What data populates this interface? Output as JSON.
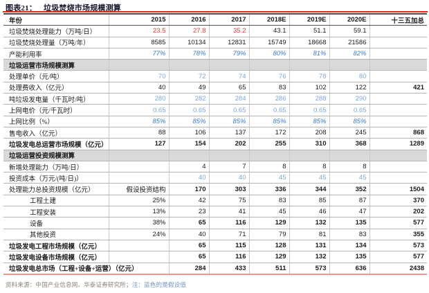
{
  "title": {
    "prefix": "图表21：",
    "caption": "垃圾焚烧市场规模测算"
  },
  "footer": {
    "source": "资料来源：中国产业信息网、华泰证券研究所；",
    "note": "注：蓝色的是假设值"
  },
  "colors": {
    "title_rule": "#e8281e",
    "bottom_rule": "#f0978b",
    "section_bg": "#d9d9d9",
    "actual_red": "#e23a32",
    "assumption_blue": "#7ca6d8",
    "assumption_blue_italic": "#3a7bc8"
  },
  "table": {
    "columns": [
      "年份",
      "2015",
      "2016",
      "2017",
      "2018E",
      "2019E",
      "2020E",
      "十三五加总"
    ],
    "rows": [
      {
        "label": "垃圾焚烧处理能力（万吨/日）",
        "vals": [
          "23.5",
          "27.8",
          "35.2",
          "43.1",
          "51.1",
          "59.1",
          ""
        ],
        "vcls": [
          "red",
          "red",
          "red",
          "",
          "",
          "",
          ""
        ]
      },
      {
        "label": "垃圾焚烧处理量（万吨/年）",
        "vals": [
          "8585",
          "10134",
          "12831",
          "15749",
          "18668",
          "21586",
          ""
        ]
      },
      {
        "label": "产能利用率",
        "vals": [
          "77%",
          "78%",
          "79%",
          "80%",
          "81%",
          "82%",
          ""
        ],
        "rowcls": "bluei"
      },
      {
        "label": "垃圾运营市场规模测算",
        "section": true,
        "vals": [
          "",
          "",
          "",
          "",
          "",
          "",
          ""
        ]
      },
      {
        "label": "处理单价（元/吨）",
        "vals": [
          "70",
          "72",
          "74",
          "76",
          "78",
          "80",
          ""
        ],
        "rowcls": "blue"
      },
      {
        "label": "处理费收入（亿元）",
        "vals": [
          "40",
          "49",
          "65",
          "83",
          "102",
          "122",
          "421"
        ],
        "vcls": [
          "",
          "",
          "",
          "",
          "",
          "",
          "b"
        ]
      },
      {
        "label": "吨垃圾发电量（千瓦时/吨）",
        "vals": [
          "280",
          "282",
          "284",
          "286",
          "288",
          "290",
          ""
        ],
        "rowcls": "blue"
      },
      {
        "label": "上网电价（元/千瓦时）",
        "vals": [
          "0.65",
          "0.65",
          "0.65",
          "0.65",
          "0.65",
          "0.65",
          ""
        ],
        "rowcls": "blue"
      },
      {
        "label": "上网比例（%）",
        "vals": [
          "85%",
          "85%",
          "85%",
          "85%",
          "85%",
          "85%",
          ""
        ],
        "rowcls": "bluei"
      },
      {
        "label": "售电收入（亿元）",
        "vals": [
          "88",
          "106",
          "137",
          "172",
          "208",
          "245",
          "868"
        ],
        "vcls": [
          "",
          "",
          "",
          "",
          "",
          "",
          "b"
        ]
      },
      {
        "label": "垃圾发电总运营市场规模（亿元）",
        "lbold": true,
        "bold": true,
        "vals": [
          "127",
          "154",
          "202",
          "255",
          "310",
          "368",
          "1289"
        ]
      },
      {
        "label": "垃圾运营投资规模测算",
        "section": true,
        "vals": [
          "",
          "",
          "",
          "",
          "",
          "",
          ""
        ]
      },
      {
        "label": "新增处理能力（万吨/日）",
        "vals": [
          "",
          "4",
          "7",
          "8",
          "8",
          "8",
          ""
        ]
      },
      {
        "label": "投资成本（万元/(吨/日)）",
        "vals": [
          "",
          "40",
          "40",
          "45",
          "45",
          "45",
          ""
        ],
        "rowcls": "blue"
      },
      {
        "label": "处理能力总投资规模（亿元）",
        "bold": true,
        "vals": [
          "假设投资结构",
          "170",
          "303",
          "336",
          "344",
          "352",
          "1504"
        ],
        "vcls": [
          "kai",
          "",
          "",
          "",
          "",
          "",
          ""
        ]
      },
      {
        "label": "工程土建",
        "indent": true,
        "vals": [
          "25%",
          "42",
          "75",
          "83",
          "85",
          "87",
          "370"
        ],
        "vcls": [
          "",
          "",
          "",
          "",
          "",
          "",
          "b"
        ]
      },
      {
        "label": "工程安装",
        "indent": true,
        "vals": [
          "13%",
          "23",
          "41",
          "45",
          "46",
          "47",
          "202"
        ],
        "vcls": [
          "",
          "",
          "",
          "",
          "",
          "",
          "b"
        ]
      },
      {
        "label": "设备",
        "indent": true,
        "bold": true,
        "vals": [
          "38%",
          "65",
          "116",
          "129",
          "132",
          "135",
          "577"
        ],
        "vcls": [
          "nb",
          "",
          "",
          "",
          "",
          "",
          ""
        ]
      },
      {
        "label": "其他投资",
        "indent": true,
        "vals": [
          "24%",
          "40",
          "71",
          "79",
          "81",
          "83",
          "355"
        ],
        "vcls": [
          "",
          "",
          "",
          "",
          "",
          "",
          "b"
        ]
      },
      {
        "label": "垃圾发电工程市场规模（亿元）",
        "lbold": true,
        "bold": true,
        "vals": [
          "",
          "65",
          "115",
          "128",
          "131",
          "134",
          "573"
        ]
      },
      {
        "label": "垃圾发电设备市场规模（亿元）",
        "lbold": true,
        "bold": true,
        "vals": [
          "",
          "65",
          "116",
          "129",
          "132",
          "135",
          "577"
        ]
      },
      {
        "label": "垃圾发电总市场（工程+设备+运营）（亿元）",
        "lbold": true,
        "bold": true,
        "lspan": 2,
        "vals": [
          "284",
          "433",
          "511",
          "573",
          "636",
          "2438"
        ]
      }
    ]
  }
}
